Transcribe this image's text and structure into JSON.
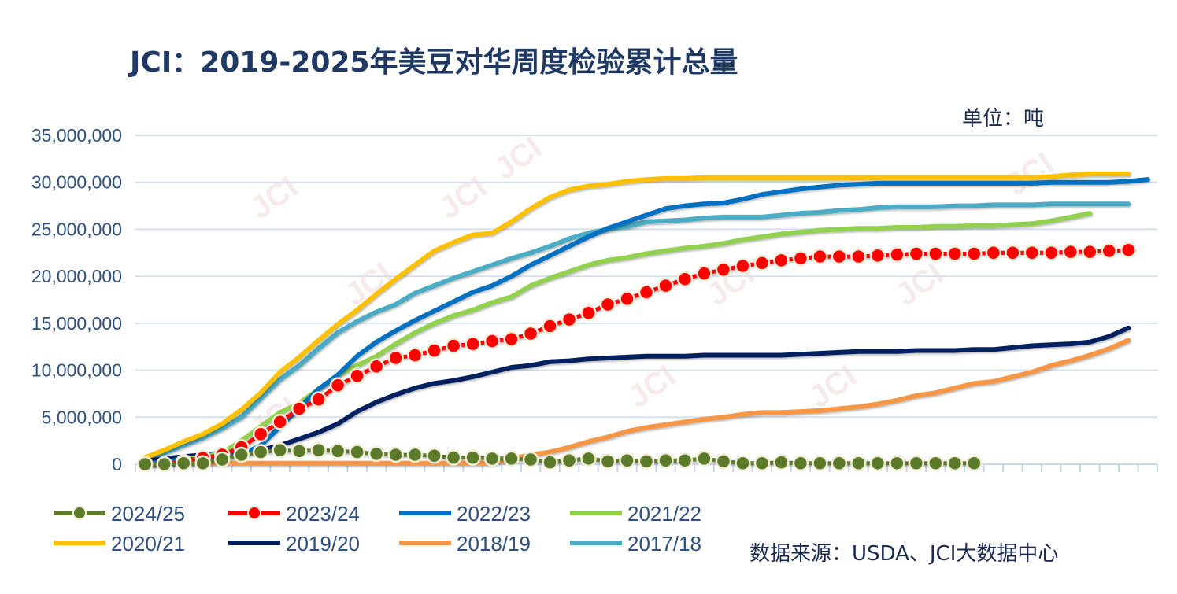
{
  "chart_data": {
    "type": "line",
    "title": "JCI：2019-2025年美豆对华周度检验累计总量",
    "unit_label": "单位：吨",
    "source": "数据来源：USDA、JCI大数据中心",
    "watermark": "JCI",
    "ylim": [
      0,
      35000000
    ],
    "yticks": [
      "0",
      "5,000,000",
      "10,000,000",
      "15,000,000",
      "20,000,000",
      "25,000,000",
      "30,000,000",
      "35,000,000"
    ],
    "ytick_values": [
      0,
      5000000,
      10000000,
      15000000,
      20000000,
      25000000,
      30000000,
      35000000
    ],
    "x_categories_count": 53,
    "grid": true,
    "legend_placement": "bottom",
    "series": [
      {
        "name": "2024/25",
        "color": "#5b7b2b",
        "marker": true,
        "values": [
          0,
          0,
          100000,
          100000,
          500000,
          1000000,
          1300000,
          1500000,
          1400000,
          1500000,
          1400000,
          1300000,
          1100000,
          1000000,
          1000000,
          900000,
          700000,
          700000,
          600000,
          600000,
          500000,
          200000,
          400000,
          600000,
          300000,
          400000,
          300000,
          400000,
          400000,
          600000,
          300000,
          100000,
          100000,
          200000,
          100000,
          100000,
          100000,
          100000,
          100000,
          100000,
          100000,
          100000,
          100000,
          100000
        ]
      },
      {
        "name": "2023/24",
        "color": "#ff0000",
        "marker": true,
        "values": [
          0,
          0,
          250000,
          670000,
          1000000,
          1800000,
          3200000,
          4500000,
          5900000,
          6900000,
          8400000,
          9400000,
          10400000,
          11300000,
          11600000,
          12100000,
          12600000,
          12800000,
          13100000,
          13300000,
          13900000,
          14700000,
          15400000,
          16100000,
          17000000,
          17600000,
          18300000,
          19000000,
          19700000,
          20300000,
          20700000,
          21100000,
          21400000,
          21700000,
          21900000,
          22100000,
          22100000,
          22100000,
          22200000,
          22300000,
          22400000,
          22400000,
          22400000,
          22400000,
          22500000,
          22500000,
          22500000,
          22500000,
          22600000,
          22600000,
          22700000,
          22800000
        ]
      },
      {
        "name": "2022/23",
        "color": "#0070c0",
        "marker": false,
        "values": [
          0,
          200000,
          400000,
          600000,
          800000,
          1000000,
          2000000,
          4000000,
          6000000,
          8000000,
          9500000,
          11500000,
          13000000,
          14200000,
          15300000,
          16300000,
          17300000,
          18300000,
          19000000,
          20000000,
          21200000,
          22200000,
          23200000,
          24200000,
          25100000,
          25800000,
          26500000,
          27200000,
          27500000,
          27700000,
          27800000,
          28200000,
          28700000,
          29000000,
          29300000,
          29500000,
          29700000,
          29800000,
          29900000,
          29900000,
          29900000,
          29900000,
          29900000,
          29900000,
          29900000,
          29900000,
          29900000,
          30000000,
          30000000,
          30000000,
          30000000,
          30100000,
          30300000
        ]
      },
      {
        "name": "2021/22",
        "color": "#92d050",
        "marker": false,
        "values": [
          0,
          200000,
          500000,
          800000,
          1200000,
          2500000,
          4000000,
          5500000,
          6500000,
          8000000,
          9500000,
          10500000,
          11500000,
          12800000,
          14000000,
          15000000,
          15800000,
          16400000,
          17200000,
          17800000,
          19000000,
          19800000,
          20500000,
          21200000,
          21700000,
          22000000,
          22400000,
          22700000,
          23000000,
          23200000,
          23500000,
          23900000,
          24200000,
          24500000,
          24700000,
          24900000,
          25000000,
          25100000,
          25100000,
          25200000,
          25200000,
          25300000,
          25300000,
          25400000,
          25400000,
          25500000,
          25600000,
          25900000,
          26300000,
          26700000
        ]
      },
      {
        "name": "2020/21",
        "color": "#ffc000",
        "marker": false,
        "values": [
          700000,
          1500000,
          2400000,
          3200000,
          4300000,
          5800000,
          7600000,
          9800000,
          11400000,
          13200000,
          14900000,
          16400000,
          18100000,
          19700000,
          21200000,
          22700000,
          23600000,
          24400000,
          24600000,
          25800000,
          27200000,
          28400000,
          29200000,
          29600000,
          29800000,
          30100000,
          30300000,
          30400000,
          30400000,
          30500000,
          30500000,
          30500000,
          30500000,
          30500000,
          30500000,
          30500000,
          30500000,
          30500000,
          30500000,
          30500000,
          30500000,
          30500000,
          30500000,
          30500000,
          30500000,
          30500000,
          30500000,
          30600000,
          30800000,
          30900000,
          30900000,
          30900000
        ]
      },
      {
        "name": "2019/20",
        "color": "#002060",
        "marker": false,
        "values": [
          300000,
          600000,
          800000,
          1000000,
          1200000,
          1300000,
          1500000,
          2000000,
          2700000,
          3400000,
          4300000,
          5600000,
          6600000,
          7400000,
          8100000,
          8600000,
          8900000,
          9300000,
          9800000,
          10300000,
          10500000,
          10900000,
          11000000,
          11200000,
          11300000,
          11400000,
          11500000,
          11500000,
          11500000,
          11600000,
          11600000,
          11600000,
          11600000,
          11600000,
          11700000,
          11800000,
          11900000,
          12000000,
          12000000,
          12000000,
          12100000,
          12100000,
          12100000,
          12200000,
          12200000,
          12400000,
          12600000,
          12700000,
          12800000,
          13000000,
          13600000,
          14500000
        ]
      },
      {
        "name": "2018/19",
        "color": "#f79646",
        "marker": false,
        "values": [
          100000,
          100000,
          100000,
          100000,
          100000,
          100000,
          100000,
          100000,
          100000,
          100000,
          100000,
          100000,
          100000,
          100000,
          100000,
          100000,
          100000,
          100000,
          100000,
          600000,
          1000000,
          1300000,
          1800000,
          2400000,
          2900000,
          3500000,
          3900000,
          4200000,
          4500000,
          4800000,
          5000000,
          5300000,
          5500000,
          5500000,
          5600000,
          5700000,
          5900000,
          6100000,
          6400000,
          6800000,
          7300000,
          7600000,
          8100000,
          8600000,
          8800000,
          9300000,
          9800000,
          10500000,
          11000000,
          11600000,
          12300000,
          13200000
        ]
      },
      {
        "name": "2017/18",
        "color": "#4bacc6",
        "marker": false,
        "values": [
          500000,
          1200000,
          2000000,
          2800000,
          3800000,
          5000000,
          7000000,
          9000000,
          10500000,
          12300000,
          14000000,
          15200000,
          16200000,
          17000000,
          18200000,
          19000000,
          19800000,
          20500000,
          21200000,
          21900000,
          22500000,
          23200000,
          24000000,
          24600000,
          25000000,
          25300000,
          25800000,
          25900000,
          26000000,
          26200000,
          26300000,
          26300000,
          26300000,
          26500000,
          26700000,
          26800000,
          27000000,
          27100000,
          27300000,
          27400000,
          27400000,
          27400000,
          27500000,
          27500000,
          27600000,
          27600000,
          27600000,
          27700000,
          27700000,
          27700000,
          27700000,
          27700000
        ]
      }
    ]
  }
}
